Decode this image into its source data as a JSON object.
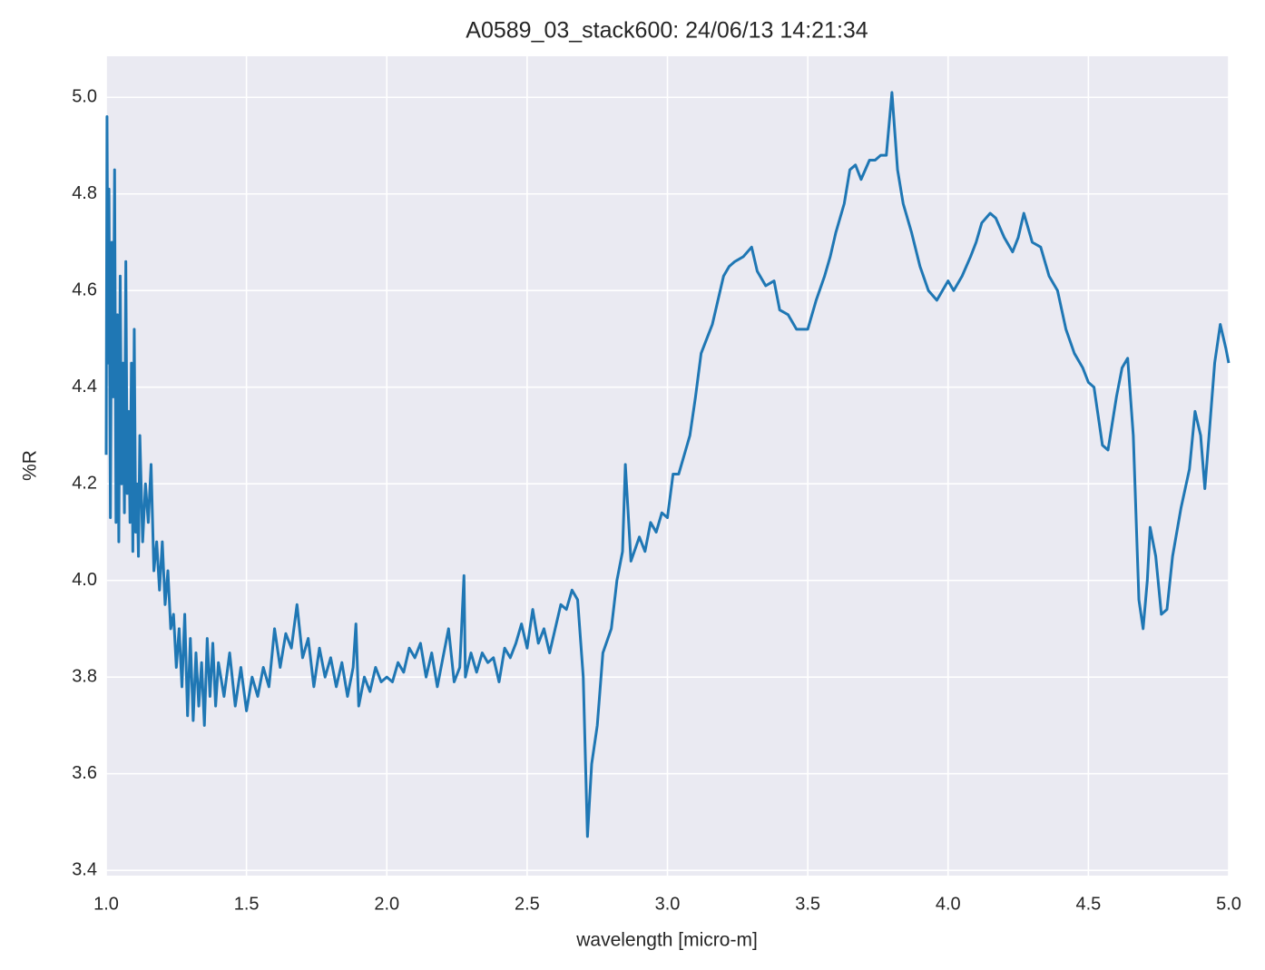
{
  "chart_data": {
    "type": "line",
    "title": "A0589_03_stack600:  24/06/13 14:21:34",
    "x_label": "wavelength [micro-m]",
    "y_label": "%R",
    "xlim": [
      1.0,
      5.0
    ],
    "ylim": [
      3.389,
      5.085
    ],
    "xticks": [
      {
        "value": 1.0,
        "label": "1.0"
      },
      1.5,
      {
        "value": 2.0,
        "label": "2.0"
      },
      2.5,
      {
        "value": 3.0,
        "label": "3.0"
      },
      3.5,
      {
        "value": 4.0,
        "label": "4.0"
      },
      4.5,
      {
        "value": 5.0,
        "label": "5.0"
      }
    ],
    "yticks": [
      3.4,
      3.6,
      3.8,
      {
        "value": 4.0,
        "label": "4.0"
      },
      4.2,
      4.4,
      4.6,
      4.8,
      {
        "value": 5.0,
        "label": "5.0"
      }
    ],
    "grid": true,
    "background": "#eaeaf2",
    "series": [
      {
        "color": "#1f77b4",
        "x": [
          1.0,
          1.003,
          1.007,
          1.01,
          1.015,
          1.02,
          1.025,
          1.03,
          1.035,
          1.04,
          1.045,
          1.05,
          1.055,
          1.06,
          1.065,
          1.07,
          1.075,
          1.08,
          1.085,
          1.09,
          1.095,
          1.1,
          1.105,
          1.11,
          1.115,
          1.12,
          1.13,
          1.14,
          1.15,
          1.16,
          1.17,
          1.18,
          1.19,
          1.2,
          1.21,
          1.22,
          1.23,
          1.24,
          1.25,
          1.26,
          1.27,
          1.28,
          1.29,
          1.3,
          1.31,
          1.32,
          1.33,
          1.34,
          1.35,
          1.36,
          1.37,
          1.38,
          1.39,
          1.4,
          1.42,
          1.44,
          1.46,
          1.48,
          1.5,
          1.52,
          1.54,
          1.56,
          1.58,
          1.6,
          1.62,
          1.64,
          1.66,
          1.68,
          1.7,
          1.72,
          1.74,
          1.76,
          1.78,
          1.8,
          1.82,
          1.84,
          1.86,
          1.88,
          1.89,
          1.9,
          1.92,
          1.94,
          1.96,
          1.98,
          2.0,
          2.02,
          2.04,
          2.06,
          2.08,
          2.1,
          2.12,
          2.14,
          2.16,
          2.18,
          2.2,
          2.22,
          2.24,
          2.26,
          2.275,
          2.28,
          2.3,
          2.32,
          2.34,
          2.36,
          2.38,
          2.4,
          2.42,
          2.44,
          2.46,
          2.48,
          2.5,
          2.52,
          2.54,
          2.56,
          2.58,
          2.6,
          2.62,
          2.64,
          2.66,
          2.68,
          2.7,
          2.715,
          2.73,
          2.75,
          2.77,
          2.8,
          2.82,
          2.84,
          2.85,
          2.87,
          2.9,
          2.92,
          2.94,
          2.96,
          2.98,
          3.0,
          3.02,
          3.04,
          3.06,
          3.08,
          3.1,
          3.12,
          3.14,
          3.16,
          3.2,
          3.22,
          3.24,
          3.27,
          3.3,
          3.32,
          3.35,
          3.38,
          3.4,
          3.43,
          3.46,
          3.5,
          3.53,
          3.56,
          3.58,
          3.6,
          3.63,
          3.65,
          3.67,
          3.69,
          3.72,
          3.74,
          3.76,
          3.78,
          3.8,
          3.82,
          3.84,
          3.87,
          3.9,
          3.93,
          3.96,
          4.0,
          4.02,
          4.05,
          4.08,
          4.1,
          4.12,
          4.15,
          4.17,
          4.2,
          4.23,
          4.25,
          4.27,
          4.3,
          4.33,
          4.36,
          4.39,
          4.42,
          4.45,
          4.48,
          4.5,
          4.52,
          4.55,
          4.57,
          4.6,
          4.62,
          4.64,
          4.66,
          4.68,
          4.695,
          4.71,
          4.72,
          4.74,
          4.76,
          4.78,
          4.8,
          4.83,
          4.86,
          4.88,
          4.9,
          4.915,
          4.93,
          4.95,
          4.97,
          4.99,
          5.0
        ],
        "values": [
          4.26,
          4.96,
          4.45,
          4.81,
          4.13,
          4.7,
          4.38,
          4.85,
          4.12,
          4.55,
          4.08,
          4.63,
          4.2,
          4.45,
          4.14,
          4.66,
          4.18,
          4.35,
          4.12,
          4.45,
          4.06,
          4.52,
          4.1,
          4.2,
          4.05,
          4.3,
          4.08,
          4.2,
          4.12,
          4.24,
          4.02,
          4.08,
          3.98,
          4.08,
          3.95,
          4.02,
          3.9,
          3.93,
          3.82,
          3.9,
          3.78,
          3.93,
          3.72,
          3.88,
          3.71,
          3.85,
          3.74,
          3.83,
          3.7,
          3.88,
          3.76,
          3.87,
          3.74,
          3.83,
          3.76,
          3.85,
          3.74,
          3.82,
          3.73,
          3.8,
          3.76,
          3.82,
          3.78,
          3.9,
          3.82,
          3.89,
          3.86,
          3.95,
          3.84,
          3.88,
          3.78,
          3.86,
          3.8,
          3.84,
          3.78,
          3.83,
          3.76,
          3.82,
          3.91,
          3.74,
          3.8,
          3.77,
          3.82,
          3.79,
          3.8,
          3.79,
          3.83,
          3.81,
          3.86,
          3.84,
          3.87,
          3.8,
          3.85,
          3.78,
          3.84,
          3.9,
          3.79,
          3.82,
          4.01,
          3.8,
          3.85,
          3.81,
          3.85,
          3.83,
          3.84,
          3.79,
          3.86,
          3.84,
          3.87,
          3.91,
          3.86,
          3.94,
          3.87,
          3.9,
          3.85,
          3.9,
          3.95,
          3.94,
          3.98,
          3.96,
          3.8,
          3.47,
          3.62,
          3.7,
          3.85,
          3.9,
          4.0,
          4.06,
          4.24,
          4.04,
          4.09,
          4.06,
          4.12,
          4.1,
          4.14,
          4.13,
          4.22,
          4.22,
          4.26,
          4.3,
          4.38,
          4.47,
          4.5,
          4.53,
          4.63,
          4.65,
          4.66,
          4.67,
          4.69,
          4.64,
          4.61,
          4.62,
          4.56,
          4.55,
          4.52,
          4.52,
          4.58,
          4.63,
          4.67,
          4.72,
          4.78,
          4.85,
          4.86,
          4.83,
          4.87,
          4.87,
          4.88,
          4.88,
          5.01,
          4.85,
          4.78,
          4.72,
          4.65,
          4.6,
          4.58,
          4.62,
          4.6,
          4.63,
          4.67,
          4.7,
          4.74,
          4.76,
          4.75,
          4.71,
          4.68,
          4.71,
          4.76,
          4.7,
          4.69,
          4.63,
          4.6,
          4.52,
          4.47,
          4.44,
          4.41,
          4.4,
          4.28,
          4.27,
          4.38,
          4.44,
          4.46,
          4.3,
          3.96,
          3.9,
          4.0,
          4.11,
          4.05,
          3.93,
          3.94,
          4.05,
          4.15,
          4.23,
          4.35,
          4.3,
          4.19,
          4.3,
          4.45,
          4.53,
          4.48,
          4.45
        ]
      }
    ]
  }
}
